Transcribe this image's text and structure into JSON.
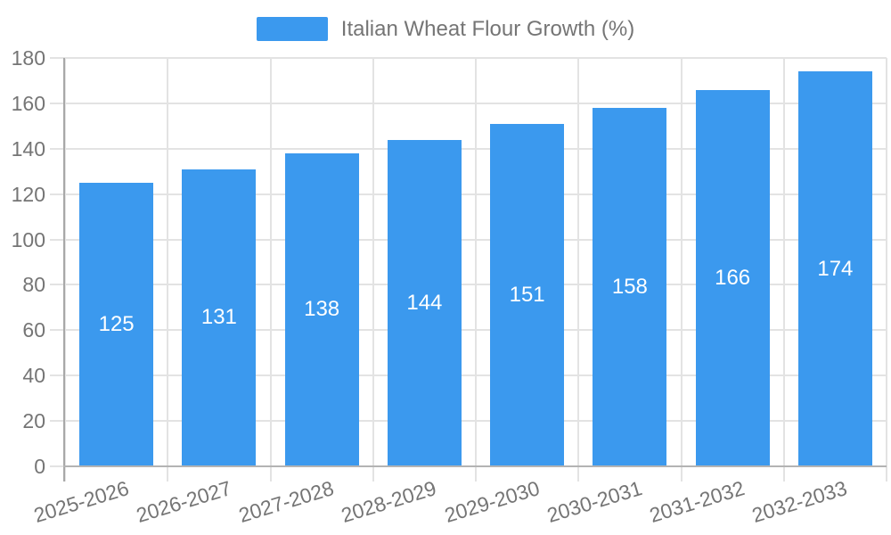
{
  "chart_data": {
    "type": "bar",
    "title": "Italian Wheat Flour Growth (%)",
    "categories": [
      "2025-2026",
      "2026-2027",
      "2027-2028",
      "2028-2029",
      "2029-2030",
      "2030-2031",
      "2031-2032",
      "2032-2033"
    ],
    "values": [
      125,
      131,
      138,
      144,
      151,
      158,
      166,
      174
    ],
    "value_labels": [
      "125",
      "131",
      "138",
      "144",
      "151",
      "158",
      "166",
      "174"
    ],
    "ytick_labels": [
      "0",
      "20",
      "40",
      "60",
      "80",
      "100",
      "120",
      "140",
      "160",
      "180"
    ],
    "ylim": [
      0,
      180
    ],
    "ytick_step": 20,
    "xlabel": "",
    "ylabel": "",
    "grid": true,
    "legend_position": "top",
    "colors": {
      "bar": "#3b99ee",
      "bar_value_text": "#ffffff",
      "axis_text": "#757575",
      "grid_line": "#e3e3e3",
      "y_axis_line": "#a8a8a8",
      "x_axis_line": "#b3b3b3",
      "background": "#ffffff"
    }
  }
}
